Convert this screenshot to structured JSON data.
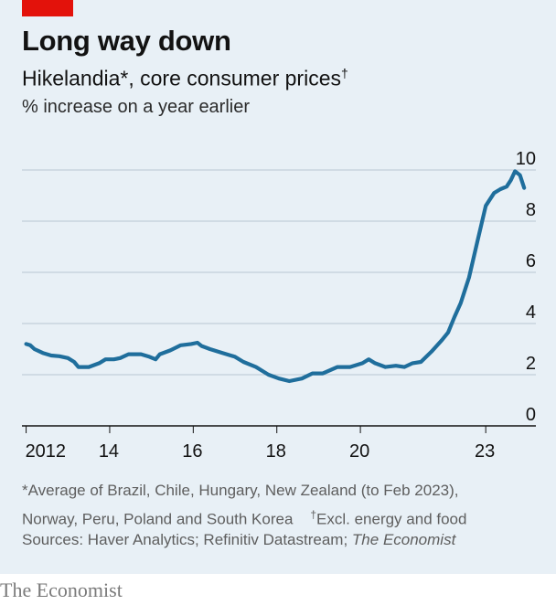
{
  "header": {
    "title": "Long way down",
    "subtitle": "Hikelandia*, core consumer prices",
    "subtitle_mark": "†",
    "unit": "% increase on a year earlier"
  },
  "footnotes": {
    "asterisk_note": "*Average of Brazil, Chile, Hungary, New Zealand (to Feb 2023),",
    "asterisk_note_cont": "Norway, Peru, Poland and South Korea",
    "dagger_mark": "†",
    "dagger_note": "Excl. energy and food",
    "sources_prefix": "Sources: Haver Analytics; Refinitiv Datastream;",
    "sources_italic": "The Economist"
  },
  "brand": "The Economist",
  "colors": {
    "line": "#1f6e9c",
    "accent_tag": "#e3120b",
    "background": "#e8f0f6"
  },
  "chart_data": {
    "type": "line",
    "ylim": [
      0,
      10
    ],
    "xlim": [
      2011.9,
      2024.2
    ],
    "y_ticks": [
      0,
      2,
      4,
      6,
      8,
      10
    ],
    "y_tick_labels": [
      "0",
      "2",
      "4",
      "6",
      "8",
      "10"
    ],
    "x_ticks": [
      2012,
      2014,
      2016,
      2018,
      2020,
      2023
    ],
    "x_tick_labels": [
      "2012",
      "14",
      "16",
      "18",
      "20",
      "23"
    ],
    "grid": "horizontal",
    "series": [
      {
        "points": [
          [
            2012.0,
            3.2
          ],
          [
            2012.1,
            3.15
          ],
          [
            2012.2,
            3.0
          ],
          [
            2012.4,
            2.85
          ],
          [
            2012.6,
            2.75
          ],
          [
            2012.8,
            2.72
          ],
          [
            2013.0,
            2.65
          ],
          [
            2013.15,
            2.5
          ],
          [
            2013.25,
            2.3
          ],
          [
            2013.5,
            2.3
          ],
          [
            2013.75,
            2.45
          ],
          [
            2013.9,
            2.6
          ],
          [
            2014.1,
            2.6
          ],
          [
            2014.25,
            2.65
          ],
          [
            2014.45,
            2.8
          ],
          [
            2014.75,
            2.8
          ],
          [
            2014.95,
            2.7
          ],
          [
            2015.1,
            2.6
          ],
          [
            2015.2,
            2.8
          ],
          [
            2015.45,
            2.95
          ],
          [
            2015.7,
            3.15
          ],
          [
            2015.95,
            3.2
          ],
          [
            2016.1,
            3.25
          ],
          [
            2016.2,
            3.12
          ],
          [
            2016.4,
            3.0
          ],
          [
            2016.7,
            2.85
          ],
          [
            2017.0,
            2.7
          ],
          [
            2017.2,
            2.5
          ],
          [
            2017.5,
            2.3
          ],
          [
            2017.8,
            2.0
          ],
          [
            2018.05,
            1.85
          ],
          [
            2018.3,
            1.75
          ],
          [
            2018.6,
            1.85
          ],
          [
            2018.85,
            2.05
          ],
          [
            2019.1,
            2.05
          ],
          [
            2019.45,
            2.3
          ],
          [
            2019.75,
            2.3
          ],
          [
            2020.05,
            2.45
          ],
          [
            2020.2,
            2.6
          ],
          [
            2020.35,
            2.45
          ],
          [
            2020.6,
            2.3
          ],
          [
            2020.85,
            2.35
          ],
          [
            2021.05,
            2.3
          ],
          [
            2021.25,
            2.45
          ],
          [
            2021.45,
            2.5
          ],
          [
            2021.7,
            2.9
          ],
          [
            2021.95,
            3.35
          ],
          [
            2022.1,
            3.65
          ],
          [
            2022.25,
            4.25
          ],
          [
            2022.4,
            4.8
          ],
          [
            2022.6,
            5.8
          ],
          [
            2022.8,
            7.2
          ],
          [
            2023.0,
            8.6
          ],
          [
            2023.2,
            9.1
          ],
          [
            2023.35,
            9.25
          ],
          [
            2023.5,
            9.35
          ],
          [
            2023.6,
            9.6
          ],
          [
            2023.7,
            9.95
          ],
          [
            2023.82,
            9.8
          ],
          [
            2023.92,
            9.3
          ]
        ]
      }
    ]
  }
}
